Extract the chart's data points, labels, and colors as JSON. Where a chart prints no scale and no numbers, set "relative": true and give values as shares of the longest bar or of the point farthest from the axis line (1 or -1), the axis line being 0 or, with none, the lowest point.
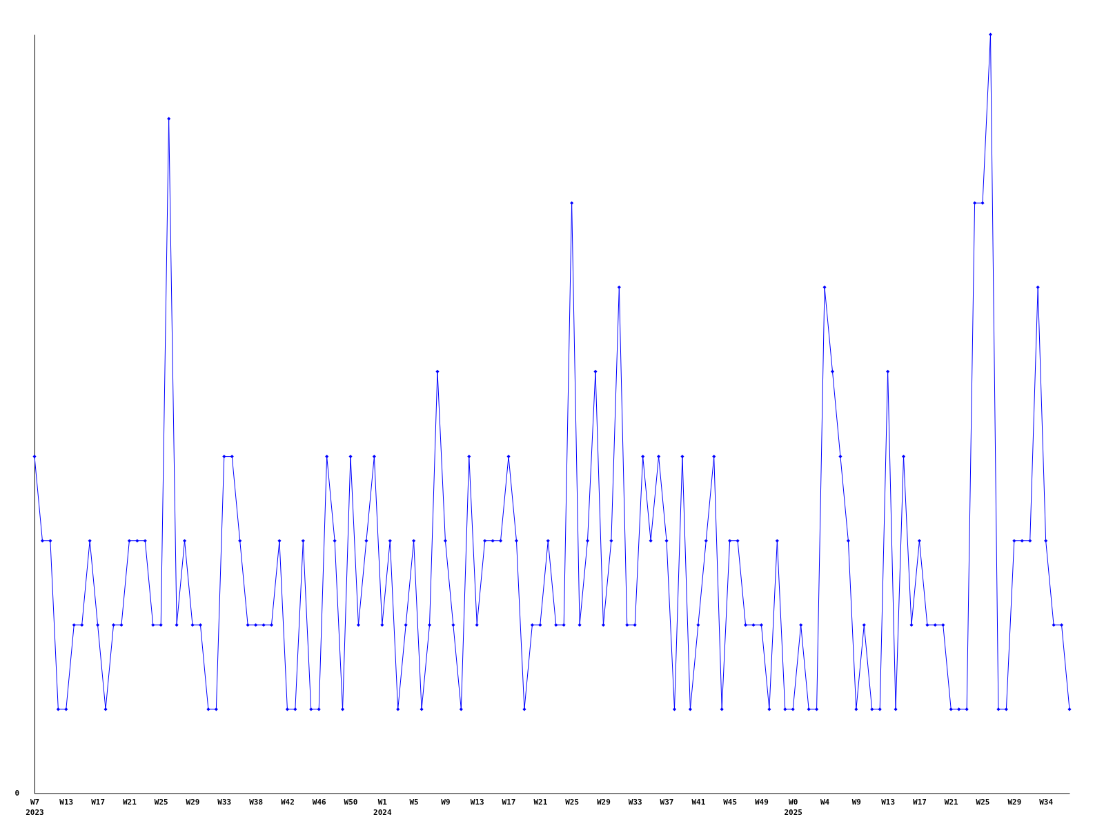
{
  "chart_data": {
    "type": "line",
    "relative": true,
    "marker": "diamond",
    "line_style": "solid",
    "categories": [
      "W7\n2023",
      null,
      null,
      null,
      "W13",
      null,
      null,
      null,
      "W17",
      null,
      null,
      null,
      "W21",
      null,
      null,
      null,
      "W25",
      null,
      null,
      null,
      "W29",
      null,
      null,
      null,
      "W33",
      null,
      null,
      null,
      "W38",
      null,
      null,
      null,
      "W42",
      null,
      null,
      null,
      "W46",
      null,
      null,
      null,
      "W50",
      null,
      null,
      null,
      "W1\n2024",
      null,
      null,
      null,
      "W5",
      null,
      null,
      null,
      "W9",
      null,
      null,
      null,
      "W13",
      null,
      null,
      null,
      "W17",
      null,
      null,
      null,
      "W21",
      null,
      null,
      null,
      "W25",
      null,
      null,
      null,
      "W29",
      null,
      null,
      null,
      "W33",
      null,
      null,
      null,
      "W37",
      null,
      null,
      null,
      "W41",
      null,
      null,
      null,
      "W45",
      null,
      null,
      null,
      "W49",
      null,
      null,
      null,
      "W0\n2025",
      null,
      null,
      null,
      "W4",
      null,
      null,
      null,
      "W9",
      null,
      null,
      null,
      "W13",
      null,
      null,
      null,
      "W17",
      null,
      null,
      null,
      "W21",
      null,
      null,
      null,
      "W25",
      null,
      null,
      null,
      "W29",
      null,
      null,
      null,
      "W34",
      null,
      null,
      null
    ],
    "series": [
      {
        "color": "#0000ff",
        "values": [
          0.444,
          0.333,
          0.333,
          0.111,
          0.111,
          0.222,
          0.222,
          0.333,
          0.222,
          0.111,
          0.222,
          0.222,
          0.333,
          0.333,
          0.333,
          0.222,
          0.222,
          0.889,
          0.222,
          0.333,
          0.222,
          0.222,
          0.111,
          0.111,
          0.444,
          0.444,
          0.333,
          0.222,
          0.222,
          0.222,
          0.222,
          0.333,
          0.111,
          0.111,
          0.333,
          0.111,
          0.111,
          0.444,
          0.333,
          0.111,
          0.444,
          0.222,
          0.333,
          0.444,
          0.222,
          0.333,
          0.111,
          0.222,
          0.333,
          0.111,
          0.222,
          0.556,
          0.333,
          0.222,
          0.111,
          0.444,
          0.222,
          0.333,
          0.333,
          0.333,
          0.444,
          0.333,
          0.111,
          0.222,
          0.222,
          0.333,
          0.222,
          0.222,
          0.778,
          0.222,
          0.333,
          0.556,
          0.222,
          0.333,
          0.667,
          0.222,
          0.222,
          0.444,
          0.333,
          0.444,
          0.333,
          0.111,
          0.444,
          0.111,
          0.222,
          0.333,
          0.444,
          0.111,
          0.333,
          0.333,
          0.222,
          0.222,
          0.222,
          0.111,
          0.333,
          0.111,
          0.111,
          0.222,
          0.111,
          0.111,
          0.667,
          0.556,
          0.444,
          0.333,
          0.111,
          0.222,
          0.111,
          0.111,
          0.556,
          0.111,
          0.444,
          0.222,
          0.333,
          0.222,
          0.222,
          0.222,
          0.111,
          0.111,
          0.111,
          0.778,
          0.778,
          1,
          0.111,
          0.111,
          0.333,
          0.333,
          0.333,
          0.667,
          0.333,
          0.222,
          0.222,
          0.111
        ]
      }
    ],
    "annotations": [
      "0"
    ]
  }
}
